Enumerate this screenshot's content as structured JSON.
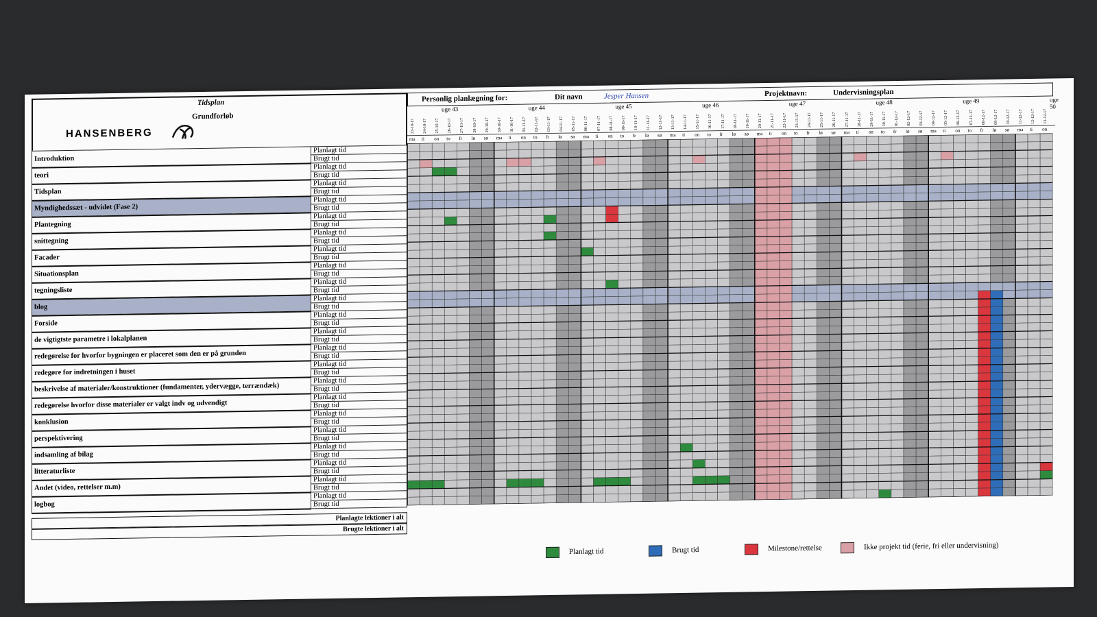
{
  "header": {
    "title": "Tidsplan",
    "subtitle": "Grundforløb",
    "logo_text": "HANSENBERG",
    "personal_label": "Personlig planlægning for:",
    "name_label": "Dit navn",
    "name_value": "Jesper Hansen",
    "project_label": "Projektnavn:",
    "project_value": "Undervisningsplan"
  },
  "row_labels": {
    "planned": "Planlagt tid",
    "used": "Brugt tid"
  },
  "tasks": [
    {
      "name": "Introduktion",
      "highlight": false
    },
    {
      "name": "teori",
      "highlight": false
    },
    {
      "name": "Tidsplan",
      "highlight": false
    },
    {
      "name": "Myndighedssæt - udvidet (Fase 2)",
      "highlight": true
    },
    {
      "name": "Plantegning",
      "highlight": false
    },
    {
      "name": "snittegning",
      "highlight": false
    },
    {
      "name": "Facader",
      "highlight": false
    },
    {
      "name": "Situationsplan",
      "highlight": false
    },
    {
      "name": "tegningsliste",
      "highlight": false
    },
    {
      "name": "blog",
      "highlight": true
    },
    {
      "name": "Forside",
      "highlight": false
    },
    {
      "name": "de vigtigtste parametre i lokalplanen",
      "highlight": false
    },
    {
      "name": "redegørelse for hvorfor bygningen er placeret som den er på grunden",
      "highlight": false
    },
    {
      "name": "redegøre for indretningen i huset",
      "highlight": false
    },
    {
      "name": "beskrivelse af materialer/konstruktioner (fundamenter, ydervægge, terrændæk)",
      "highlight": false
    },
    {
      "name": "redegørelse hvorfor disse materialer er valgt indv og udvendigt",
      "highlight": false
    },
    {
      "name": "konklusion",
      "highlight": false
    },
    {
      "name": "perspektivering",
      "highlight": false
    },
    {
      "name": "indsamling af bilag",
      "highlight": false
    },
    {
      "name": "litteraturliste",
      "highlight": false
    },
    {
      "name": "Andet (video, rettelser m.m)",
      "highlight": false
    },
    {
      "name": "logbog",
      "highlight": false
    }
  ],
  "summary": {
    "planned_total": "Planlagte lektioner i alt",
    "used_total": "Brugte lektioner i alt"
  },
  "weeks": [
    "uge 43",
    "uge 44",
    "uge 45",
    "uge 46",
    "uge 47",
    "uge 48",
    "uge 49",
    "uge 50"
  ],
  "weekdays": [
    "ma",
    "ti",
    "on",
    "to",
    "fr",
    "lø",
    "sø"
  ],
  "dates": [
    "23-10-17",
    "24-10-17",
    "25-10-17",
    "26-10-17",
    "27-10-17",
    "28-10-17",
    "29-10-17",
    "30-10-17",
    "31-10-17",
    "01-11-17",
    "02-11-17",
    "03-11-17",
    "04-11-17",
    "05-11-17",
    "06-11-17",
    "07-11-17",
    "08-11-17",
    "09-11-17",
    "10-11-17",
    "11-11-17",
    "12-11-17",
    "13-11-17",
    "14-11-17",
    "15-11-17",
    "16-11-17",
    "17-11-17",
    "18-11-17",
    "19-11-17",
    "20-11-17",
    "21-11-17",
    "22-11-17",
    "23-11-17",
    "24-11-17",
    "25-11-17",
    "26-11-17",
    "27-11-17",
    "28-11-17",
    "29-11-17",
    "30-11-17",
    "01-12-17",
    "02-12-17",
    "03-12-17",
    "04-12-17",
    "05-12-17",
    "06-12-17",
    "07-12-17",
    "08-12-17",
    "09-12-17",
    "10-12-17",
    "11-12-17",
    "12-12-17",
    "13-12-17"
  ],
  "legend": [
    {
      "label": "Planlagt tid",
      "color": "#2e8b3e"
    },
    {
      "label": "Brugt tid",
      "color": "#2f6db8"
    },
    {
      "label": "Milestone/rettelse",
      "color": "#d9363e"
    },
    {
      "label": "Ikke projekt tid (ferie, fri eller undervisning)",
      "color": "#d9a0a6"
    }
  ],
  "colors": {
    "green": "#2e8b3e",
    "blue": "#2f6db8",
    "red": "#d9363e",
    "pink": "#d9a0a6",
    "weekend": "#9b9b9e",
    "weekday": "#c9c9cc",
    "highlight": "#a8b1c7"
  }
}
